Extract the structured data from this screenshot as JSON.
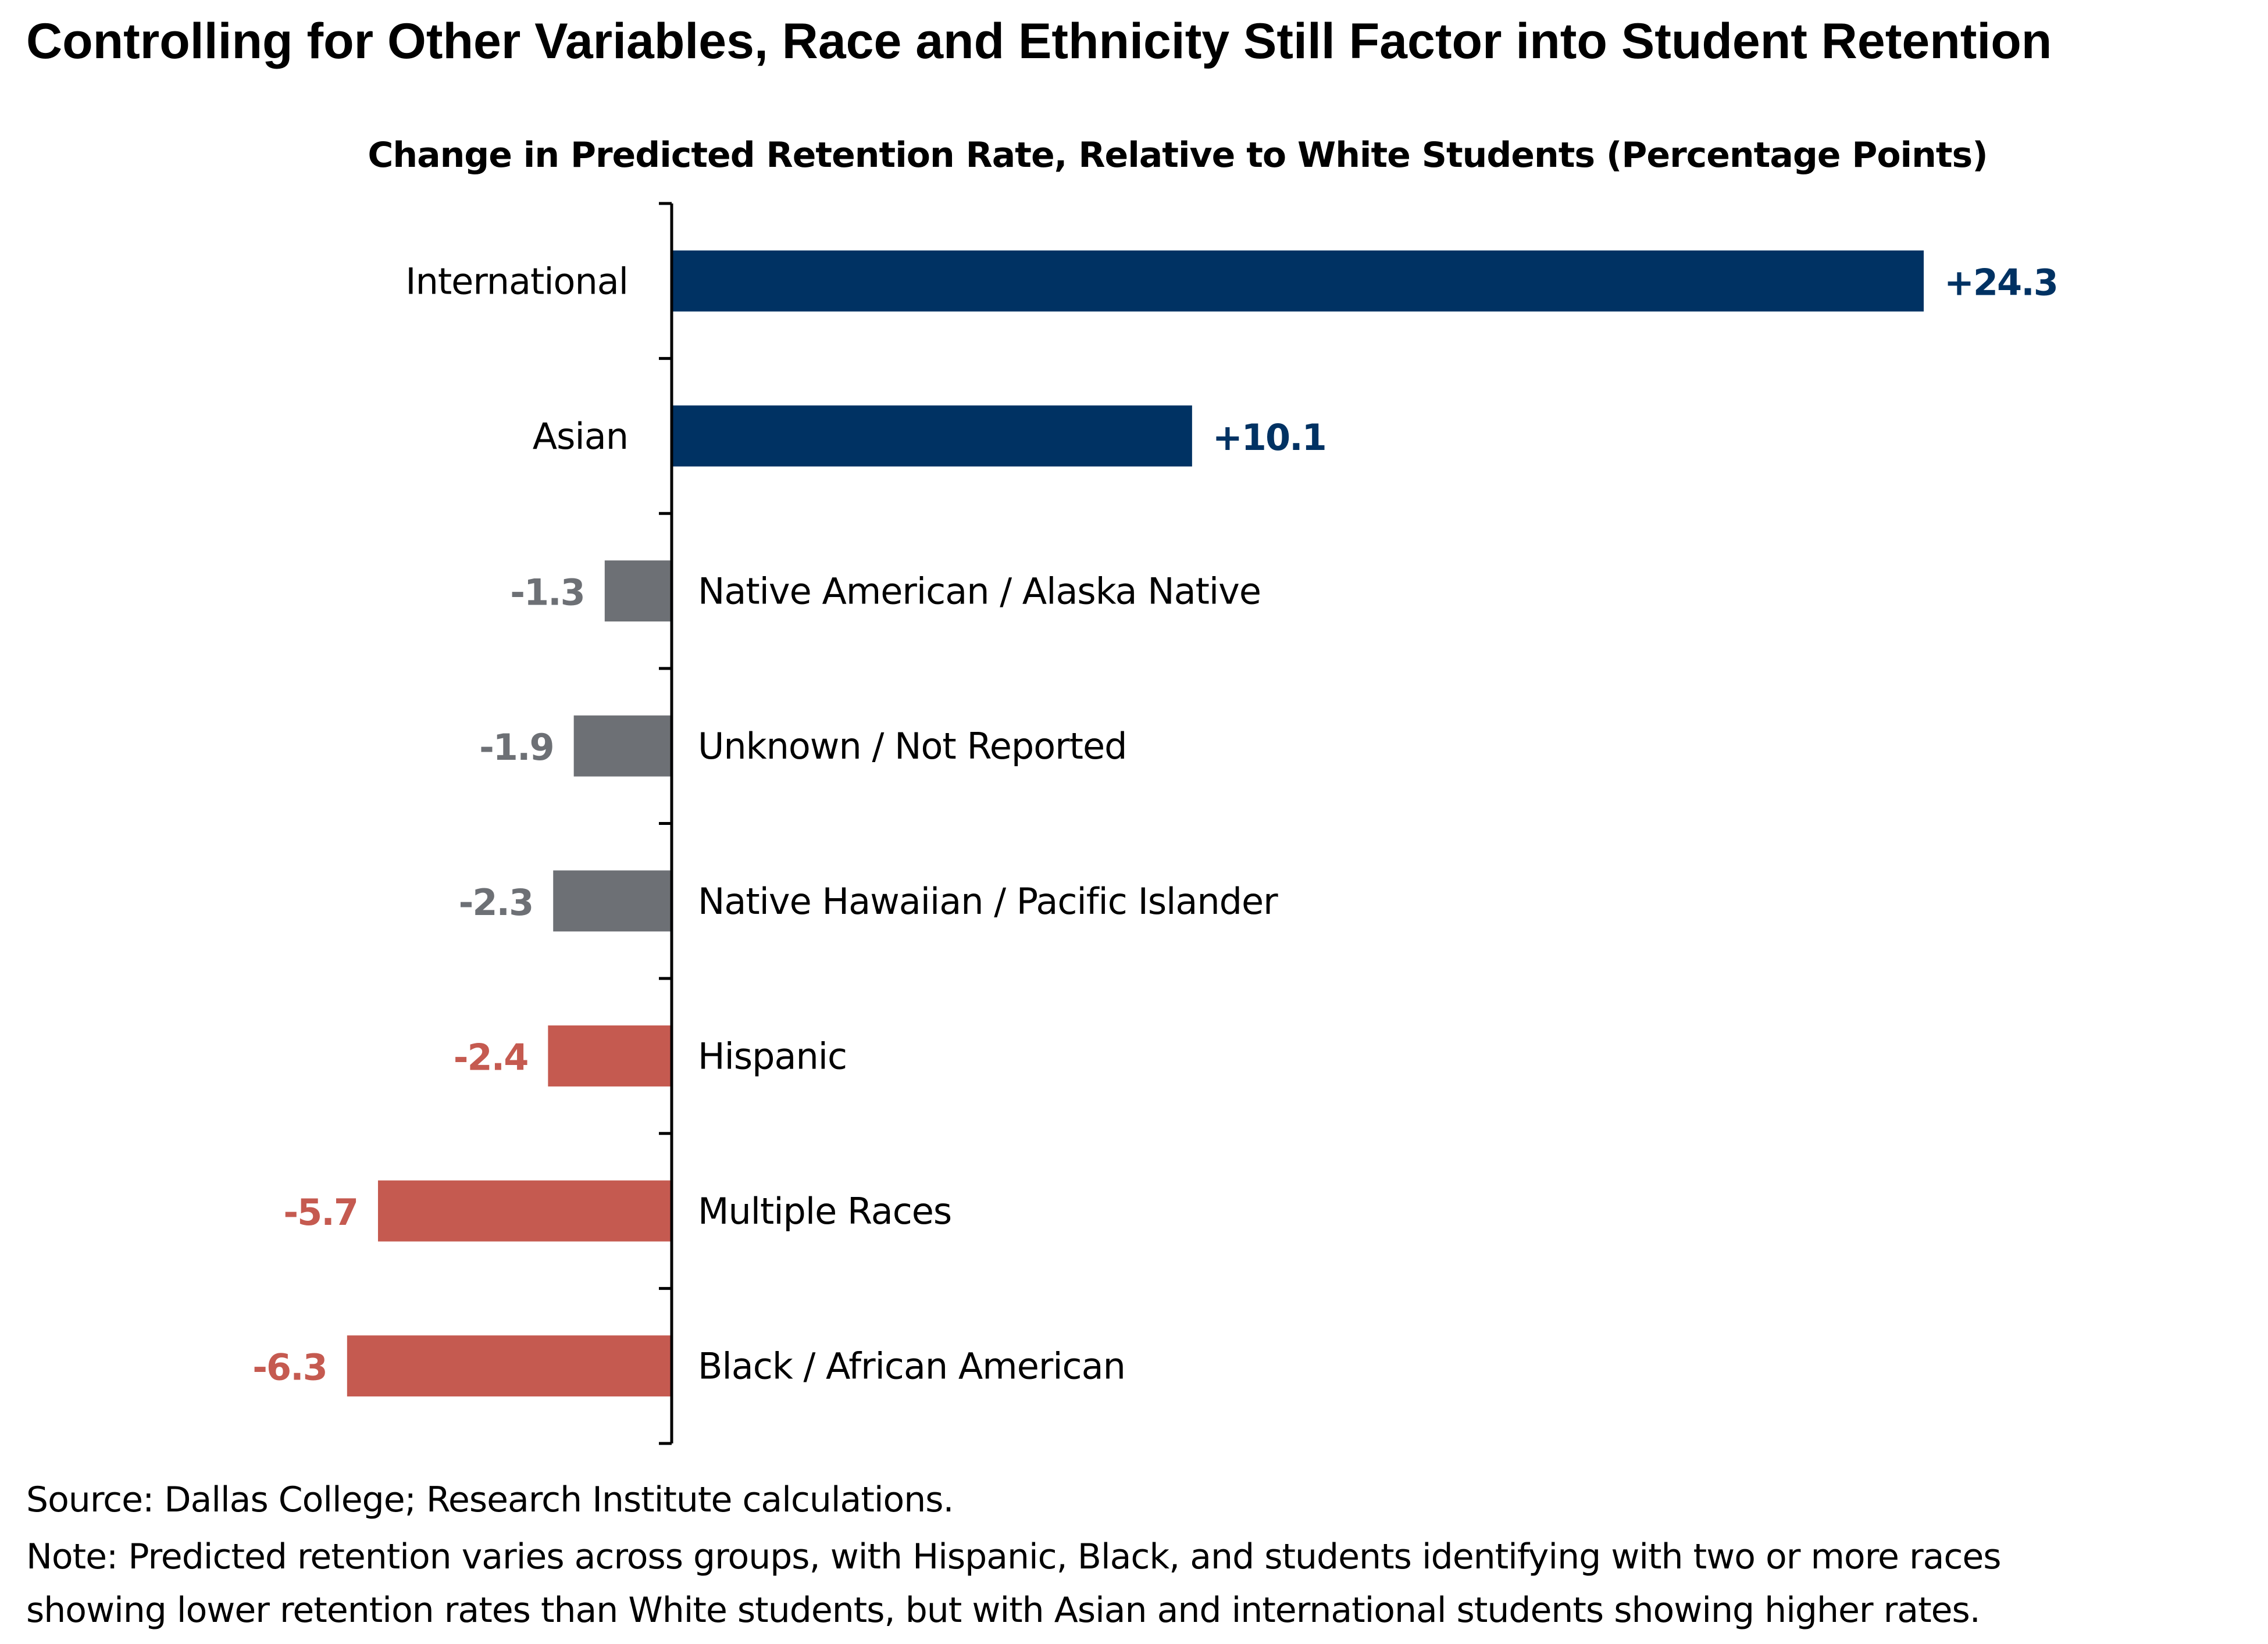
{
  "title": "Controlling for Other Variables, Race and Ethnicity Still Factor into Student Retention",
  "chart_data": {
    "type": "bar",
    "orientation": "horizontal",
    "title": "Change in Predicted Retention Rate, Relative to White Students (Percentage Points)",
    "categories": [
      "International",
      "Asian",
      "Native American / Alaska Native",
      "Unknown / Not Reported",
      "Native Hawaiian / Pacific Islander",
      "Hispanic",
      "Multiple Races",
      "Black / African American"
    ],
    "values": [
      24.3,
      10.1,
      -1.3,
      -1.9,
      -2.3,
      -2.4,
      -5.7,
      -6.3
    ],
    "data_labels": [
      "+24.3",
      "+10.1",
      "-1.3",
      "-1.9",
      "-2.3",
      "-2.4",
      "-5.7",
      "-6.3"
    ],
    "bar_colors": [
      "#003263",
      "#003263",
      "#6d7075",
      "#6d7075",
      "#6d7075",
      "#c55a50",
      "#c55a50",
      "#c55a50"
    ],
    "xlim": [
      -6.3,
      24.3
    ],
    "grid": false
  },
  "footer": {
    "source": "Source: Dallas College; Research Institute calculations.",
    "note_line1": "Note: Predicted retention varies across groups, with Hispanic, Black, and students identifying with two or more races",
    "note_line2": "showing lower retention rates than White students, but with Asian and international students showing higher rates."
  }
}
